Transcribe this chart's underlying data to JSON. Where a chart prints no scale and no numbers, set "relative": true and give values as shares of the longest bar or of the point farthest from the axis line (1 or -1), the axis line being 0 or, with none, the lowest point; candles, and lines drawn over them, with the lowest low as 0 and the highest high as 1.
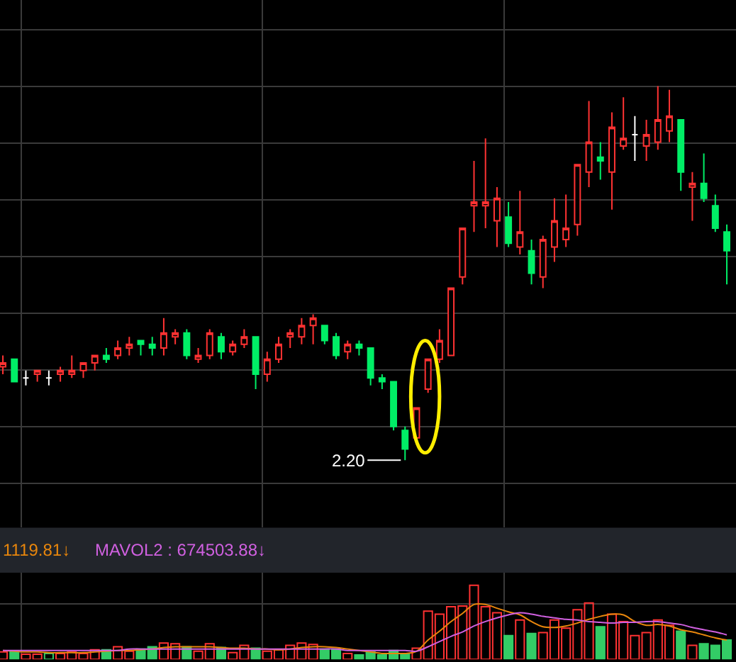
{
  "chart_data": [
    {
      "type": "candlestick",
      "relative": true,
      "grid": true,
      "tick_labels": false,
      "categories": [
        null,
        null,
        null,
        null,
        null,
        null,
        null,
        null,
        null,
        null,
        null,
        null,
        null,
        null,
        null,
        null,
        null,
        null,
        null,
        null,
        null,
        null,
        null,
        null,
        null,
        null,
        null,
        null,
        null,
        null,
        null,
        null,
        null,
        null,
        null,
        null,
        null,
        null,
        null,
        null,
        null,
        null,
        null,
        null,
        null,
        null,
        null,
        null,
        null,
        null,
        null,
        null,
        null,
        null,
        null,
        null,
        null,
        null,
        null,
        null,
        null,
        null,
        null,
        null
      ],
      "colors": [
        "#ff3232",
        "#00ee66",
        "#ffffff",
        "#ff3232",
        "#ffffff",
        "#ff3232",
        "#ff3232",
        "#ff3232",
        "#ff3232",
        "#00ee66",
        "#ff3232",
        "#ff3232",
        "#00ee66",
        "#00ee66",
        "#ff3232",
        "#ff3232",
        "#00ee66",
        "#ff3232",
        "#ff3232",
        "#00ee66",
        "#ff3232",
        "#ff3232",
        "#00ee66",
        "#ff3232",
        "#ff3232",
        "#ff3232",
        "#ff3232",
        "#ff3232",
        "#00ee66",
        "#00ee66",
        "#ff3232",
        "#00ee66",
        "#00ee66",
        "#00ee66",
        "#00ee66",
        "#00ee66",
        "#ff3232",
        "#ff3232",
        "#ff3232",
        "#ff3232",
        "#ff3232",
        "#ff3232",
        "#ff3232",
        "#ff3232",
        "#00ee66",
        "#ff3232",
        "#00ee66",
        "#ff3232",
        "#ff3232",
        "#ff3232",
        "#ff3232",
        "#ff3232",
        "#00ee66",
        "#ff3232",
        "#ff3232",
        "#ffffff",
        "#ff3232",
        "#ff3232",
        "#ff3232",
        "#00ee66",
        "#ff3232",
        "#00ee66",
        "#00ee66",
        "#00ee66"
      ],
      "ohlc": [
        [
          0.25,
          0.28,
          0.23,
          0.26
        ],
        [
          0.27,
          0.27,
          0.21,
          0.21
        ],
        [
          0.22,
          0.24,
          0.2,
          0.22
        ],
        [
          0.23,
          0.24,
          0.21,
          0.24
        ],
        [
          0.22,
          0.24,
          0.2,
          0.22
        ],
        [
          0.23,
          0.25,
          0.21,
          0.24
        ],
        [
          0.23,
          0.28,
          0.22,
          0.24
        ],
        [
          0.24,
          0.26,
          0.22,
          0.26
        ],
        [
          0.26,
          0.28,
          0.24,
          0.28
        ],
        [
          0.28,
          0.3,
          0.26,
          0.27
        ],
        [
          0.28,
          0.32,
          0.27,
          0.3
        ],
        [
          0.3,
          0.33,
          0.28,
          0.31
        ],
        [
          0.32,
          0.32,
          0.28,
          0.31
        ],
        [
          0.31,
          0.33,
          0.28,
          0.3
        ],
        [
          0.3,
          0.38,
          0.28,
          0.34
        ],
        [
          0.33,
          0.35,
          0.31,
          0.34
        ],
        [
          0.34,
          0.35,
          0.27,
          0.28
        ],
        [
          0.27,
          0.3,
          0.26,
          0.28
        ],
        [
          0.28,
          0.35,
          0.27,
          0.34
        ],
        [
          0.33,
          0.34,
          0.27,
          0.29
        ],
        [
          0.29,
          0.32,
          0.28,
          0.31
        ],
        [
          0.31,
          0.35,
          0.3,
          0.33
        ],
        [
          0.33,
          0.33,
          0.19,
          0.23
        ],
        [
          0.23,
          0.29,
          0.21,
          0.27
        ],
        [
          0.27,
          0.33,
          0.26,
          0.31
        ],
        [
          0.33,
          0.35,
          0.3,
          0.34
        ],
        [
          0.33,
          0.38,
          0.31,
          0.36
        ],
        [
          0.36,
          0.39,
          0.31,
          0.38
        ],
        [
          0.36,
          0.36,
          0.31,
          0.32
        ],
        [
          0.33,
          0.34,
          0.27,
          0.28
        ],
        [
          0.29,
          0.32,
          0.27,
          0.31
        ],
        [
          0.31,
          0.32,
          0.28,
          0.3
        ],
        [
          0.3,
          0.3,
          0.2,
          0.22
        ],
        [
          0.22,
          0.23,
          0.19,
          0.21
        ],
        [
          0.21,
          0.21,
          0.08,
          0.09
        ],
        [
          0.08,
          0.09,
          0,
          0.03
        ],
        [
          0.06,
          0.14,
          0.05,
          0.14
        ],
        [
          0.19,
          0.27,
          0.18,
          0.27
        ],
        [
          0.27,
          0.35,
          0.26,
          0.32
        ],
        [
          0.28,
          0.46,
          0.28,
          0.46
        ],
        [
          0.49,
          0.62,
          0.47,
          0.62
        ],
        [
          0.68,
          0.8,
          0.61,
          0.69
        ],
        [
          0.68,
          0.86,
          0.62,
          0.69
        ],
        [
          0.64,
          0.73,
          0.57,
          0.7
        ],
        [
          0.65,
          0.69,
          0.57,
          0.58
        ],
        [
          0.57,
          0.72,
          0.55,
          0.61
        ],
        [
          0.56,
          0.59,
          0.47,
          0.5
        ],
        [
          0.49,
          0.6,
          0.46,
          0.59
        ],
        [
          0.57,
          0.7,
          0.53,
          0.64
        ],
        [
          0.59,
          0.71,
          0.57,
          0.62
        ],
        [
          0.63,
          0.79,
          0.6,
          0.79
        ],
        [
          0.77,
          0.96,
          0.73,
          0.85
        ],
        [
          0.81,
          0.85,
          0.75,
          0.8
        ],
        [
          0.77,
          0.93,
          0.67,
          0.89
        ],
        [
          0.84,
          0.97,
          0.83,
          0.86
        ],
        [
          0.87,
          0.92,
          0.8,
          0.87
        ],
        [
          0.84,
          0.91,
          0.8,
          0.87
        ],
        [
          0.85,
          1,
          0.83,
          0.91
        ],
        [
          0.88,
          0.99,
          0.85,
          0.92
        ],
        [
          0.91,
          0.91,
          0.72,
          0.77
        ],
        [
          0.73,
          0.77,
          0.64,
          0.74
        ],
        [
          0.74,
          0.82,
          0.69,
          0.7
        ],
        [
          0.68,
          0.71,
          0.61,
          0.62
        ],
        [
          0.61,
          0.63,
          0.47,
          0.56
        ]
      ],
      "annotations": [
        "2.20"
      ]
    },
    {
      "type": "bar",
      "relative": true,
      "grid": true,
      "tick_labels": false,
      "categories": [
        null,
        null,
        null,
        null,
        null,
        null,
        null,
        null,
        null,
        null,
        null,
        null,
        null,
        null,
        null,
        null,
        null,
        null,
        null,
        null,
        null,
        null,
        null,
        null,
        null,
        null,
        null,
        null,
        null,
        null,
        null,
        null,
        null,
        null,
        null,
        null,
        null,
        null,
        null,
        null,
        null,
        null,
        null,
        null,
        null,
        null,
        null,
        null,
        null,
        null,
        null,
        null,
        null,
        null,
        null,
        null,
        null,
        null,
        null,
        null,
        null,
        null,
        null,
        null
      ],
      "series": [
        {
          "type": "bar",
          "values": [
            0.1,
            0.11,
            0.07,
            0.07,
            0.08,
            0.08,
            0.1,
            0.08,
            0.13,
            0.13,
            0.17,
            0.11,
            0.14,
            0.17,
            0.22,
            0.21,
            0.17,
            0.11,
            0.21,
            0.16,
            0.09,
            0.19,
            0.15,
            0.11,
            0.13,
            0.19,
            0.22,
            0.2,
            0.14,
            0.14,
            0.08,
            0.06,
            0.1,
            0.06,
            0.12,
            0.07,
            0.15,
            0.65,
            0.61,
            0.71,
            0.72,
            1.0,
            0.71,
            0.63,
            0.32,
            0.53,
            0.35,
            0.36,
            0.53,
            0.42,
            0.67,
            0.76,
            0.44,
            0.61,
            0.51,
            0.32,
            0.36,
            0.53,
            0.46,
            0.38,
            0.19,
            0.21,
            0.19,
            0.26
          ],
          "colors": [
            "#ff3232",
            "#33cc66",
            "#ff3232",
            "#ff3232",
            "#33cc66",
            "#ff3232",
            "#ff3232",
            "#ff3232",
            "#ff3232",
            "#33cc66",
            "#ff3232",
            "#ff3232",
            "#33cc66",
            "#33cc66",
            "#ff3232",
            "#ff3232",
            "#33cc66",
            "#ff3232",
            "#ff3232",
            "#33cc66",
            "#ff3232",
            "#ff3232",
            "#33cc66",
            "#ff3232",
            "#ff3232",
            "#ff3232",
            "#ff3232",
            "#ff3232",
            "#33cc66",
            "#33cc66",
            "#ff3232",
            "#33cc66",
            "#33cc66",
            "#33cc66",
            "#33cc66",
            "#33cc66",
            "#ff3232",
            "#ff3232",
            "#ff3232",
            "#ff3232",
            "#ff3232",
            "#ff3232",
            "#ff3232",
            "#ff3232",
            "#33cc66",
            "#ff3232",
            "#33cc66",
            "#ff3232",
            "#ff3232",
            "#ff3232",
            "#ff3232",
            "#ff3232",
            "#33cc66",
            "#ff3232",
            "#ff3232",
            "#ff3232",
            "#ff3232",
            "#ff3232",
            "#ff3232",
            "#33cc66",
            "#ff3232",
            "#33cc66",
            "#33cc66",
            "#33cc66"
          ]
        },
        {
          "type": "line",
          "color": "#e8860c",
          "values": [
            0.12,
            0.11,
            0.1,
            0.1,
            0.09,
            0.09,
            0.09,
            0.09,
            0.1,
            0.11,
            0.12,
            0.12,
            0.13,
            0.14,
            0.16,
            0.17,
            0.17,
            0.17,
            0.17,
            0.16,
            0.15,
            0.15,
            0.14,
            0.14,
            0.13,
            0.14,
            0.16,
            0.17,
            0.17,
            0.16,
            0.14,
            0.12,
            0.1,
            0.08,
            0.08,
            0.08,
            0.11,
            0.26,
            0.38,
            0.51,
            0.62,
            0.74,
            0.74,
            0.69,
            0.64,
            0.6,
            0.51,
            0.44,
            0.43,
            0.45,
            0.49,
            0.54,
            0.58,
            0.61,
            0.6,
            0.51,
            0.46,
            0.47,
            0.45,
            0.4,
            0.37,
            0.33,
            0.29,
            0.26
          ]
        },
        {
          "type": "line",
          "color": "#d060e0",
          "values": [
            0.12,
            0.12,
            0.12,
            0.12,
            0.12,
            0.12,
            0.12,
            0.12,
            0.12,
            0.12,
            0.12,
            0.14,
            0.14,
            0.14,
            0.14,
            0.14,
            0.14,
            0.14,
            0.14,
            0.14,
            0.14,
            0.14,
            0.14,
            0.14,
            0.14,
            0.14,
            0.14,
            0.14,
            0.14,
            0.14,
            0.12,
            0.12,
            0.12,
            0.12,
            0.12,
            0.12,
            0.11,
            0.17,
            0.24,
            0.31,
            0.37,
            0.45,
            0.51,
            0.56,
            0.6,
            0.63,
            0.61,
            0.58,
            0.56,
            0.54,
            0.53,
            0.51,
            0.5,
            0.49,
            0.5,
            0.5,
            0.51,
            0.51,
            0.49,
            0.47,
            0.43,
            0.4,
            0.37,
            0.33
          ]
        }
      ],
      "annotations": [
        "1119.81↓",
        "MAVOL2 : 674503.88↓"
      ]
    }
  ]
}
